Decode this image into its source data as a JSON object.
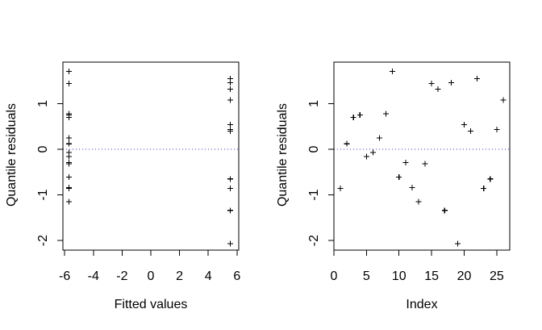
{
  "figure": {
    "background": "#ffffff",
    "text_color": "#000000",
    "axis_color": "#000000",
    "marker_color": "#000000",
    "reference_line_color": "#3232f0"
  },
  "chart_data": [
    {
      "type": "scatter",
      "marker": "plus",
      "title": "",
      "xlabel": "Fitted values",
      "ylabel": "Quantile residuals",
      "xlim": [
        -6.12,
        6.12
      ],
      "ylim": [
        -2.21,
        1.91
      ],
      "xticks": [
        -6,
        -4,
        -2,
        0,
        2,
        4,
        6
      ],
      "yticks": [
        -2,
        -1,
        0,
        1
      ],
      "grid": false,
      "ref_line_y": 0,
      "ref_line_style": "dotted",
      "points": {
        "x": [
          -5.7,
          -5.7,
          -5.7,
          -5.7,
          -5.7,
          -5.7,
          -5.7,
          -5.7,
          -5.7,
          -5.7,
          -5.7,
          -5.7,
          -5.7,
          -5.7,
          -5.7,
          5.52,
          5.52,
          5.52,
          5.52,
          5.52,
          5.52,
          5.52,
          5.52,
          5.52,
          5.52,
          5.52
        ],
        "y": [
          -0.86,
          0.12,
          0.7,
          0.75,
          -0.16,
          -0.07,
          0.25,
          0.78,
          1.71,
          -0.61,
          -0.29,
          -0.84,
          -1.15,
          -0.32,
          1.44,
          1.32,
          -1.34,
          1.46,
          -2.07,
          0.54,
          0.4,
          1.55,
          -0.86,
          -0.65,
          0.43,
          1.08
        ]
      }
    },
    {
      "type": "scatter",
      "marker": "plus",
      "title": "",
      "xlabel": "Index",
      "ylabel": "Quantile residuals",
      "xlim": [
        0,
        27
      ],
      "ylim": [
        -2.21,
        1.91
      ],
      "xticks": [
        0,
        5,
        10,
        15,
        20,
        25
      ],
      "yticks": [
        -2,
        -1,
        0,
        1
      ],
      "grid": false,
      "ref_line_y": 0,
      "ref_line_style": "dotted",
      "points": {
        "x": [
          1,
          2,
          3,
          4,
          5,
          6,
          7,
          8,
          9,
          10,
          11,
          12,
          13,
          14,
          15,
          16,
          17,
          18,
          19,
          20,
          21,
          22,
          23,
          24,
          25,
          26
        ],
        "y": [
          -0.86,
          0.12,
          0.7,
          0.75,
          -0.16,
          -0.07,
          0.25,
          0.78,
          1.71,
          -0.61,
          -0.29,
          -0.84,
          -1.15,
          -0.32,
          1.44,
          1.32,
          -1.34,
          1.46,
          -2.07,
          0.54,
          0.4,
          1.55,
          -0.86,
          -0.65,
          0.43,
          1.08
        ]
      }
    }
  ]
}
